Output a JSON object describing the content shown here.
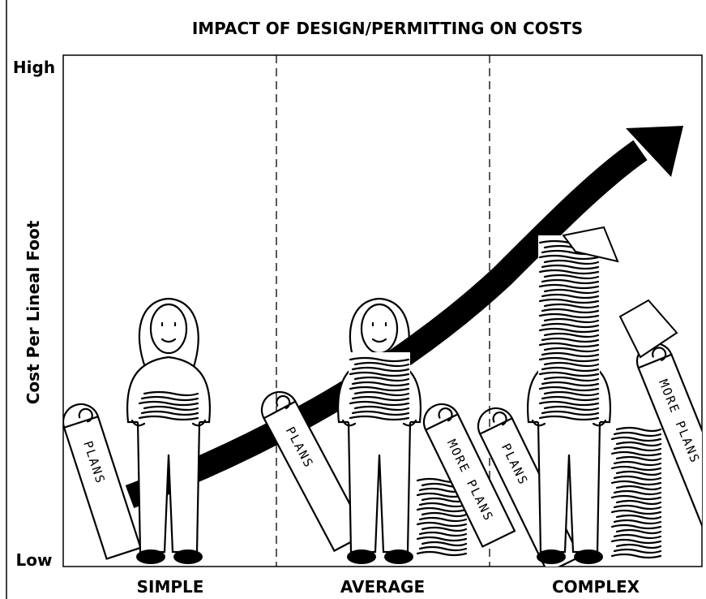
{
  "title": "IMPACT OF DESIGN/PERMITTING ON COSTS",
  "y_axis": {
    "label": "Cost Per Lineal Foot",
    "high": "High",
    "low": "Low"
  },
  "columns": [
    {
      "label": "SIMPLE"
    },
    {
      "label": "AVERAGE"
    },
    {
      "label": "COMPLEX"
    }
  ],
  "illustration": {
    "labels": [
      "PLANS",
      "PLANS",
      "MORE PLANS",
      "PLANS",
      "MORE PLANS"
    ]
  }
}
